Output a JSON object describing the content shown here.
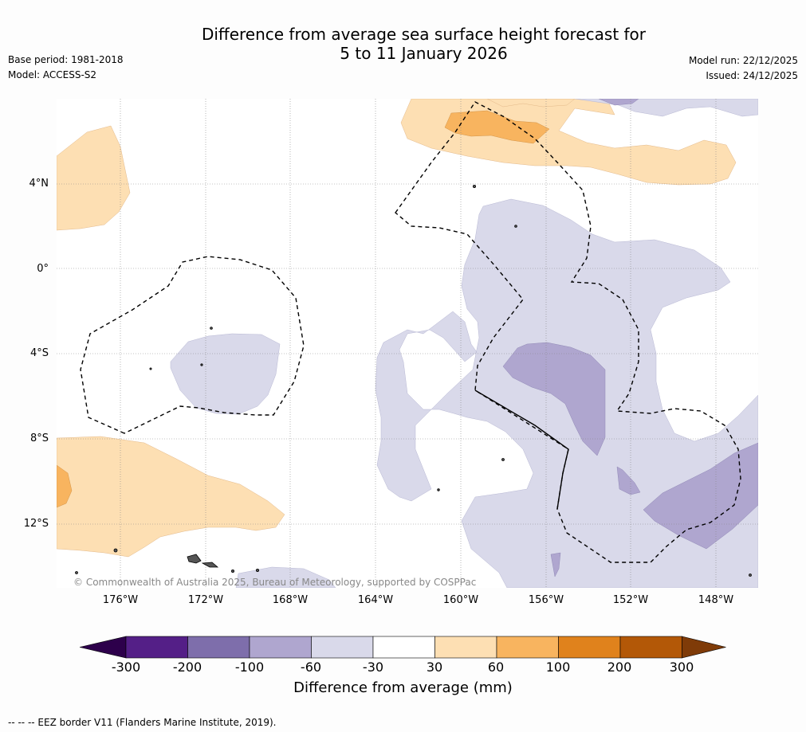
{
  "title": {
    "line1": "Difference from average sea surface height forecast for",
    "line2": "5 to 11 January 2026"
  },
  "meta": {
    "base_period": "Base period: 1981-2018",
    "model": "Model: ACCESS-S2",
    "model_run": "Model run: 22/12/2025",
    "issued": "Issued: 24/12/2025"
  },
  "map": {
    "copyright": "© Commonwealth of Australia 2025, Bureau of Meteorology, supported by COSPPac",
    "longitude_labels": [
      "176°W",
      "172°W",
      "168°W",
      "164°W",
      "160°W",
      "156°W",
      "152°W",
      "148°W"
    ],
    "latitude_labels": [
      "4°N",
      "0°",
      "4°S",
      "8°S",
      "12°S"
    ]
  },
  "colorbar": {
    "tick_labels": [
      "-300",
      "-200",
      "-100",
      "-60",
      "-30",
      "30",
      "60",
      "100",
      "200",
      "300"
    ],
    "colors": [
      "#541f87",
      "#7e6eab",
      "#afa6cf",
      "#d9d9ea",
      "#ffffff",
      "#fddfb3",
      "#f8b45f",
      "#e0821c",
      "#b35807"
    ],
    "under_color": "#2d004b",
    "over_color": "#7f3b08",
    "title": "Difference from average (mm)"
  },
  "legend_note": "--  --  -- EEZ border V11 (Flanders Marine Institute, 2019)."
}
